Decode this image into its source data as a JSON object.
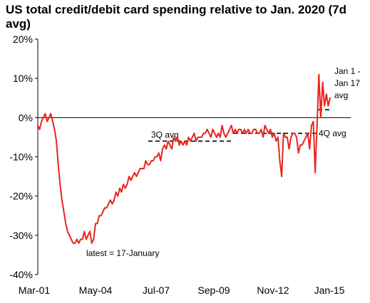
{
  "chart_data": {
    "type": "line",
    "title_lines": [
      "US total credit/debit card spending relative to Jan. 2020 (7d",
      "avg)"
    ],
    "xlabel": "",
    "ylabel": "",
    "x_tick_labels": [
      "Mar-01",
      "May-04",
      "Jul-07",
      "Sep-09",
      "Nov-12",
      "Jan-15"
    ],
    "y_ticks": [
      20,
      10,
      0,
      -10,
      -20,
      -30,
      -40
    ],
    "y_tick_labels": [
      "20%",
      "10%",
      "0%",
      "-10%",
      "-20%",
      "-30%",
      "-40%"
    ],
    "ylim": [
      -40,
      20
    ],
    "zero_line": 0,
    "grid": false,
    "legend": "none",
    "line_color": "#e8251c",
    "series": [
      {
        "values": [
          -2,
          -3,
          -1,
          0,
          1,
          -1,
          0,
          1,
          -1,
          -3,
          -6,
          -12,
          -17,
          -21,
          -24,
          -27,
          -29,
          -30,
          -31,
          -32,
          -32,
          -31,
          -32,
          -31,
          -31,
          -29,
          -31,
          -30,
          -29,
          -32,
          -31,
          -27,
          -27,
          -25,
          -25,
          -24,
          -23,
          -23,
          -22,
          -21,
          -22,
          -21,
          -19,
          -20,
          -18,
          -19,
          -17,
          -18,
          -17,
          -15,
          -16,
          -15,
          -14,
          -15,
          -14,
          -13,
          -13,
          -13,
          -11,
          -12,
          -12,
          -11,
          -11,
          -10,
          -10,
          -9,
          -11,
          -8,
          -7,
          -8,
          -6,
          -7,
          -8,
          -5,
          -6,
          -5,
          -7,
          -6,
          -7,
          -6,
          -7,
          -5,
          -6,
          -5,
          -4,
          -6,
          -5,
          -5,
          -5,
          -4,
          -4,
          -3,
          -4,
          -5,
          -3,
          -4,
          -5,
          -4,
          -5,
          -2,
          -4,
          -5,
          -4,
          -3,
          -2,
          -4,
          -3,
          -4,
          -3,
          -3,
          -4,
          -3,
          -4,
          -3,
          -4,
          -4,
          -3,
          -3,
          -4,
          -4,
          -3,
          -5,
          -2,
          -3,
          -4,
          -3,
          -5,
          -4,
          -6,
          -5,
          -11,
          -15,
          -4,
          -5,
          -5,
          -8,
          -5,
          -4,
          -4,
          -5,
          -9,
          -7,
          -7,
          -6,
          -5,
          -4,
          -8,
          -2,
          -1,
          -14,
          -2,
          11,
          0,
          9,
          3,
          6,
          3,
          5
        ]
      }
    ],
    "reference_lines": [
      {
        "label": "3Q avg",
        "value": -6
      },
      {
        "label": "4Q avg",
        "value": -4
      },
      {
        "label_lines": [
          "Jan 1 -",
          "Jan 17",
          "avg"
        ],
        "value": 2
      }
    ],
    "annotations": [
      "latest = 17-January"
    ]
  }
}
